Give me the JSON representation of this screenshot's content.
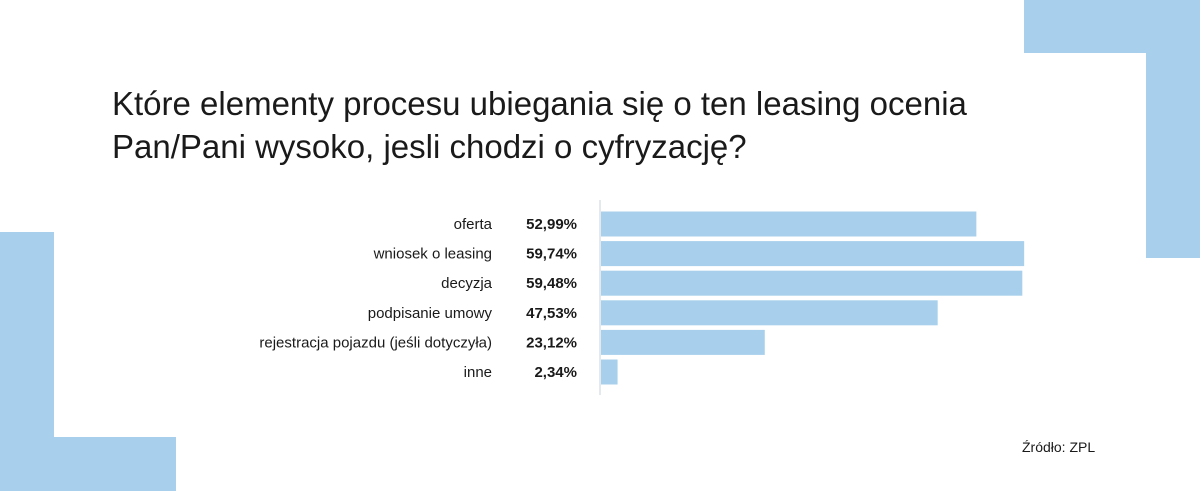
{
  "title": "Które elementy procesu ubiegania się o ten leasing ocenia Pan/Pani wysoko, jesli chodzi o cyfryzację?",
  "source": "Źródło: ZPL",
  "colors": {
    "bar": "#a8cfeb",
    "decoration": "#a8cfeb",
    "text": "#1a1a1a"
  },
  "chart_data": {
    "type": "bar",
    "orientation": "horizontal",
    "title": "Które elementy procesu ubiegania się o ten leasing ocenia Pan/Pani wysoko, jesli chodzi o cyfryzację?",
    "categories": [
      "oferta",
      "wniosek o leasing",
      "decyzja",
      "podpisanie umowy",
      "rejestracja pojazdu (jeśli dotyczyła)",
      "inne"
    ],
    "values": [
      52.99,
      59.74,
      59.48,
      47.53,
      23.12,
      2.34
    ],
    "value_labels": [
      "52,99%",
      "59,74%",
      "59,48%",
      "47,53%",
      "23,12%",
      "2,34%"
    ],
    "unit": "%",
    "xlim": [
      0,
      60
    ],
    "grid": false,
    "legend": "none"
  }
}
